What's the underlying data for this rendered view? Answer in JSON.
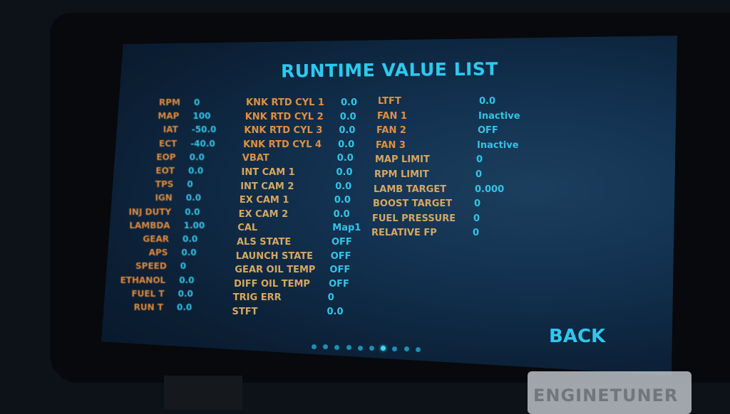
{
  "title": "RUNTIME VALUE LIST",
  "back_label": "BACK",
  "brand": "ENGINETUNER",
  "colors": {
    "accent": "#2ec8ee",
    "label": "#e08a3c",
    "value": "#33c4e6"
  },
  "columns": [
    [
      {
        "label": "RPM",
        "value": "0"
      },
      {
        "label": "MAP",
        "value": "100"
      },
      {
        "label": "IAT",
        "value": "-50.0"
      },
      {
        "label": "ECT",
        "value": "-40.0"
      },
      {
        "label": "EOP",
        "value": "0.0"
      },
      {
        "label": "EOT",
        "value": "0.0"
      },
      {
        "label": "TPS",
        "value": "0"
      },
      {
        "label": "IGN",
        "value": "0.0"
      },
      {
        "label": "INJ DUTY",
        "value": "0.0"
      },
      {
        "label": "LAMBDA",
        "value": "1.00"
      },
      {
        "label": "GEAR",
        "value": "0.0"
      },
      {
        "label": "APS",
        "value": "0.0"
      },
      {
        "label": "SPEED",
        "value": "0"
      },
      {
        "label": "ETHANOL",
        "value": "0.0"
      },
      {
        "label": "FUEL T",
        "value": "0.0"
      },
      {
        "label": "RUN T",
        "value": "0.0"
      }
    ],
    [
      {
        "label": "KNK RTD CYL 1",
        "value": "0.0"
      },
      {
        "label": "KNK RTD CYL 2",
        "value": "0.0"
      },
      {
        "label": "KNK RTD CYL 3",
        "value": "0.0"
      },
      {
        "label": "KNK RTD CYL 4",
        "value": "0.0"
      },
      {
        "label": "VBAT",
        "value": "0.0"
      },
      {
        "label": "INT CAM 1",
        "value": "0.0"
      },
      {
        "label": "INT CAM 2",
        "value": "0.0"
      },
      {
        "label": "EX CAM 1",
        "value": "0.0"
      },
      {
        "label": "EX CAM 2",
        "value": "0.0"
      },
      {
        "label": "CAL",
        "value": "Map1"
      },
      {
        "label": "ALS STATE",
        "value": "OFF"
      },
      {
        "label": "LAUNCH STATE",
        "value": "OFF"
      },
      {
        "label": "GEAR OIL TEMP",
        "value": "OFF"
      },
      {
        "label": "DIFF OIL TEMP",
        "value": "OFF"
      },
      {
        "label": "TRIG ERR",
        "value": "0"
      },
      {
        "label": "STFT",
        "value": "0.0"
      }
    ],
    [
      {
        "label": "LTFT",
        "value": "0.0"
      },
      {
        "label": "FAN 1",
        "value": "Inactive"
      },
      {
        "label": "FAN 2",
        "value": "OFF"
      },
      {
        "label": "FAN 3",
        "value": "Inactive"
      },
      {
        "label": "MAP LIMIT",
        "value": "0"
      },
      {
        "label": "RPM LIMIT",
        "value": "0"
      },
      {
        "label": "LAMB TARGET",
        "value": "0.000"
      },
      {
        "label": "BOOST TARGET",
        "value": "0"
      },
      {
        "label": "FUEL PRESSURE",
        "value": "0"
      },
      {
        "label": "RELATIVE FP",
        "value": "0"
      }
    ]
  ],
  "pagination": {
    "total": 10,
    "active_index": 6
  }
}
